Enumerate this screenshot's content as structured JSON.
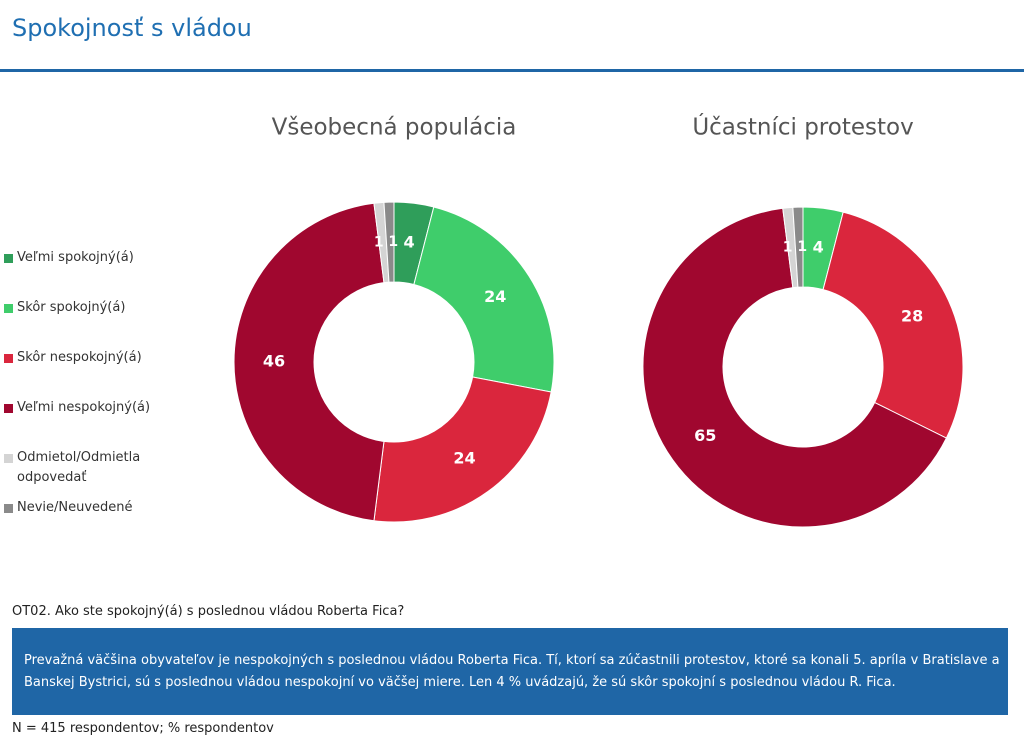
{
  "header": {
    "title": "Spokojnosť s vládou"
  },
  "chart_data": [
    {
      "type": "pie",
      "donut": true,
      "title": "Všeobecná populácia",
      "categories": [
        "Veľmi spokojný(á)",
        "Skôr spokojný(á)",
        "Skôr nespokojný(á)",
        "Veľmi nespokojný(á)",
        "Odmietol/Odmietla odpovedať",
        "Nevie/Neuvedené"
      ],
      "colors": [
        "#2f9e5a",
        "#3fcd6b",
        "#da263d",
        "#a0072f",
        "#d4d4d4",
        "#8a8a8a"
      ],
      "values": [
        4,
        24,
        24,
        46,
        1,
        1
      ]
    },
    {
      "type": "pie",
      "donut": true,
      "title": "Účastníci protestov",
      "categories": [
        "Veľmi spokojný(á)",
        "Skôr spokojný(á)",
        "Skôr nespokojný(á)",
        "Veľmi nespokojný(á)",
        "Odmietol/Odmietla odpovedať",
        "Nevie/Neuvedené"
      ],
      "colors": [
        "#2f9e5a",
        "#3fcd6b",
        "#da263d",
        "#a0072f",
        "#d4d4d4",
        "#8a8a8a"
      ],
      "values": [
        null,
        4,
        28,
        65,
        1,
        1
      ]
    }
  ],
  "question": "OT02. Ako ste spokojný(á) s poslednou vládou Roberta Fica?",
  "summary": "Prevažná väčšina obyvateľov je nespokojných s poslednou vládou Roberta Fica. Tí, ktorí sa zúčastnili protestov, ktoré sa konali 5. apríla v Bratislave a Banskej Bystrici, sú s poslednou vládou nespokojní vo väčšej miere. Len 4 % uvádzajú, že sú skôr spokojní s poslednou vládou R. Fica.",
  "footnote": "N = 415 respondentov; % respondentov"
}
